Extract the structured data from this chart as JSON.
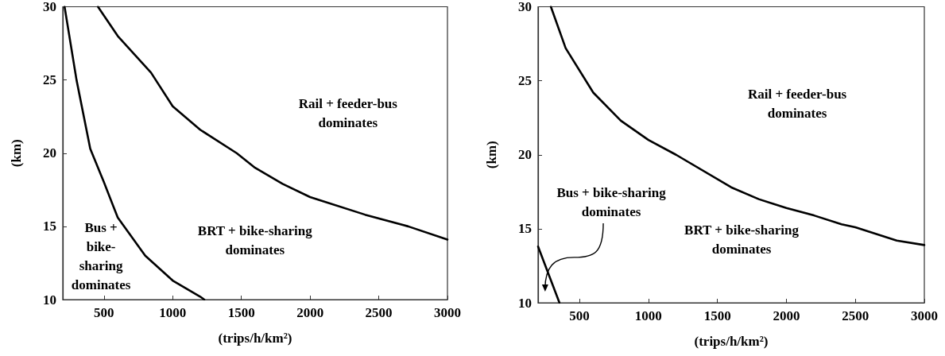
{
  "chart_data": [
    {
      "type": "line",
      "xlabel": "(trips/h/km²)",
      "ylabel": "(km)",
      "xlim": [
        200,
        3000
      ],
      "xticks": [
        500,
        1000,
        1500,
        2000,
        2500,
        3000
      ],
      "ylim": [
        10,
        30
      ],
      "yticks": [
        10,
        15,
        20,
        25,
        30
      ],
      "grid": false,
      "marker": "none",
      "line_style": "solid",
      "series": [
        {
          "color": "#000000",
          "x": [
            213,
            300,
            400,
            500,
            600,
            800,
            1000,
            1200,
            1230
          ],
          "values": [
            30,
            25,
            20.3,
            18,
            15.6,
            13,
            11.3,
            10.2,
            10
          ]
        },
        {
          "color": "#000000",
          "x": [
            456,
            600,
            842,
            1000,
            1200,
            1466,
            1600,
            1800,
            2000,
            2400,
            2714,
            3000
          ],
          "values": [
            30,
            28,
            25.5,
            23.2,
            21.6,
            20,
            19,
            17.9,
            17,
            15.8,
            15,
            14.1
          ]
        }
      ],
      "annotations": [
        "Rail + feeder-bus\ndominates",
        "BRT + bike-sharing\ndominates",
        "Bus +\nbike-\nsharing\ndominates"
      ]
    },
    {
      "type": "line",
      "xlabel": "(trips/h/km²)",
      "ylabel": "(km)",
      "xlim": [
        200,
        3000
      ],
      "xticks": [
        500,
        1000,
        1500,
        2000,
        2500,
        3000
      ],
      "ylim": [
        10,
        30
      ],
      "yticks": [
        10,
        15,
        20,
        25,
        30
      ],
      "grid": false,
      "marker": "none",
      "line_style": "solid",
      "series": [
        {
          "color": "#000000",
          "x": [
            200,
            355
          ],
          "values": [
            13.8,
            10
          ]
        },
        {
          "color": "#000000",
          "x": [
            293,
            400,
            600,
            800,
            1000,
            1200,
            1600,
            1800,
            2000,
            2200,
            2400,
            2500,
            2800,
            3000
          ],
          "values": [
            30,
            27.2,
            24.2,
            22.3,
            21,
            20,
            17.8,
            17,
            16.4,
            15.9,
            15.3,
            15.1,
            14.2,
            13.9
          ]
        }
      ],
      "annotations": [
        "Rail + feeder-bus\ndominates",
        "BRT + bike-sharing\ndominates",
        "Bus + bike-sharing\ndominates"
      ]
    }
  ]
}
